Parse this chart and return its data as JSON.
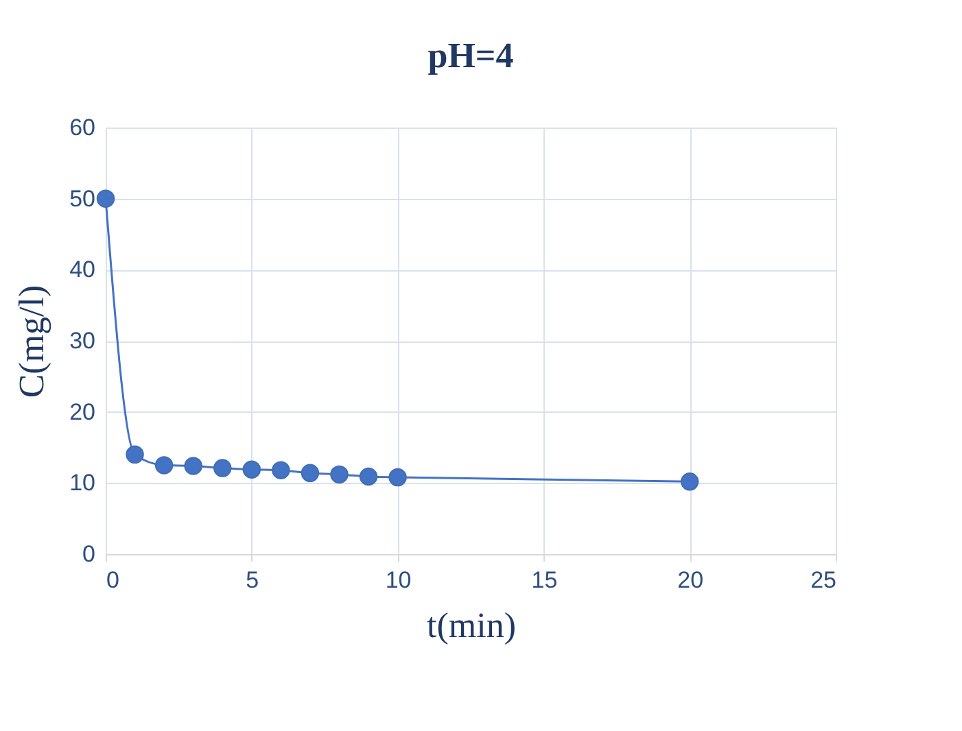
{
  "chart_data": {
    "type": "line",
    "title": "pH=4",
    "xlabel": "t(min)",
    "ylabel": "C(mg/l)",
    "x": [
      0,
      1,
      2,
      3,
      4,
      5,
      6,
      7,
      8,
      9,
      10,
      20
    ],
    "series": [
      {
        "color": "#4472c4",
        "values": [
          50,
          14,
          12.5,
          12.4,
          12.1,
          11.9,
          11.8,
          11.4,
          11.2,
          10.9,
          10.8,
          10.2
        ]
      }
    ],
    "xlim": [
      0,
      25
    ],
    "xticks": [
      0,
      5,
      10,
      15,
      20,
      25
    ],
    "ylim": [
      0,
      60
    ],
    "yticks": [
      0,
      10,
      20,
      30,
      40,
      50,
      60
    ],
    "grid": true,
    "marker": "circle",
    "line_style": "solid"
  }
}
